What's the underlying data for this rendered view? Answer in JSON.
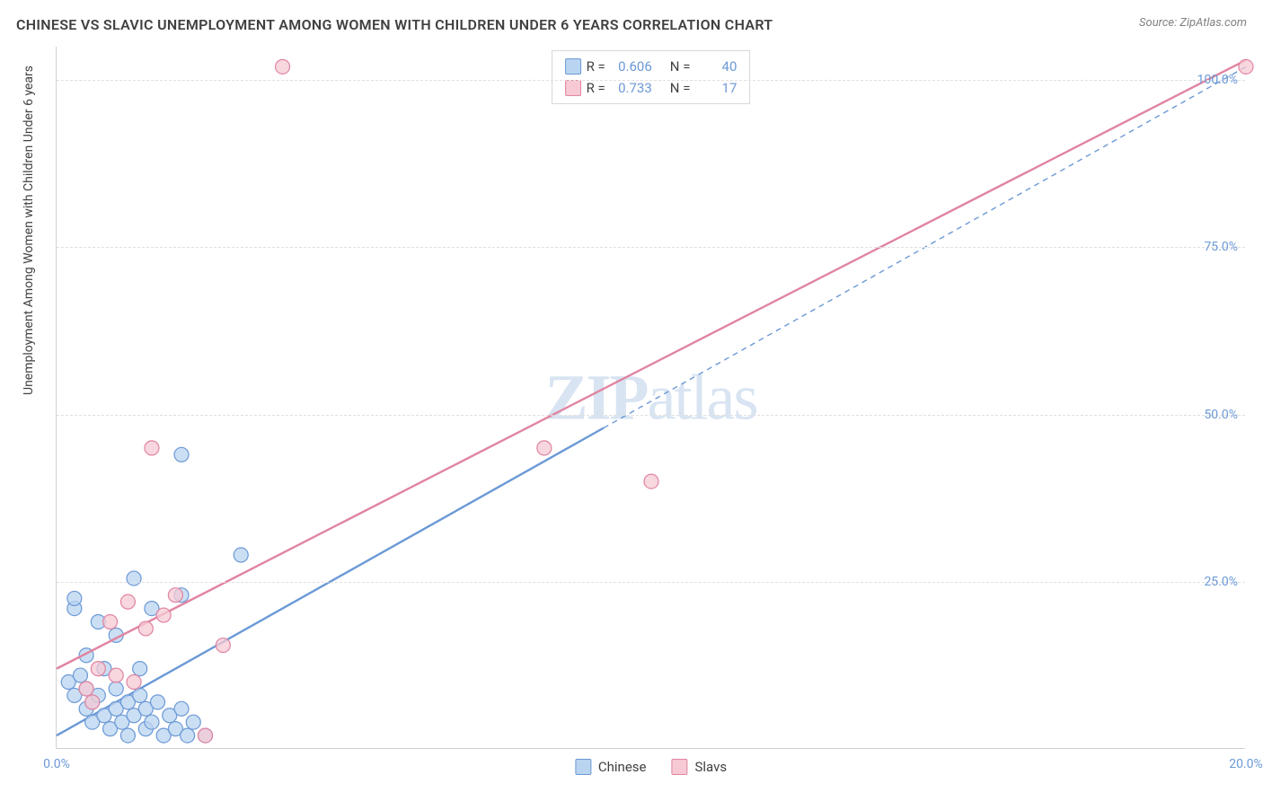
{
  "title": "CHINESE VS SLAVIC UNEMPLOYMENT AMONG WOMEN WITH CHILDREN UNDER 6 YEARS CORRELATION CHART",
  "source": "Source: ZipAtlas.com",
  "y_axis_label": "Unemployment Among Women with Children Under 6 years",
  "watermark_1": "ZIP",
  "watermark_2": "atlas",
  "chart": {
    "type": "scatter",
    "xlim": [
      0,
      20
    ],
    "ylim": [
      0,
      105
    ],
    "x_ticks": [
      {
        "v": 0,
        "label": "0.0%"
      },
      {
        "v": 20,
        "label": "20.0%"
      }
    ],
    "y_ticks": [
      {
        "v": 25,
        "label": "25.0%"
      },
      {
        "v": 50,
        "label": "50.0%"
      },
      {
        "v": 75,
        "label": "75.0%"
      },
      {
        "v": 100,
        "label": "100.0%"
      }
    ],
    "grid_color": "#e0e0e0",
    "background": "#ffffff",
    "series": [
      {
        "key": "chinese",
        "label": "Chinese",
        "color_fill": "#b9d4f0",
        "color_stroke": "#6b99d6",
        "r_value": "0.606",
        "n_value": "40",
        "marker_radius": 8,
        "trend": {
          "x1": 0,
          "y1": 2,
          "x2": 9.2,
          "y2": 48,
          "stroke_width": 2.4
        },
        "trend_ext": {
          "x1": 9.2,
          "y1": 48,
          "x2": 20,
          "y2": 102,
          "dash": "6,5",
          "stroke_width": 1.4
        },
        "points": [
          [
            0.2,
            10
          ],
          [
            0.3,
            8
          ],
          [
            0.4,
            11
          ],
          [
            0.5,
            6
          ],
          [
            0.5,
            9
          ],
          [
            0.6,
            7
          ],
          [
            0.6,
            4
          ],
          [
            0.7,
            8
          ],
          [
            0.8,
            5
          ],
          [
            0.8,
            12
          ],
          [
            0.9,
            3
          ],
          [
            1.0,
            6
          ],
          [
            1.0,
            9
          ],
          [
            1.1,
            4
          ],
          [
            1.2,
            7
          ],
          [
            1.2,
            2
          ],
          [
            1.3,
            5
          ],
          [
            1.4,
            8
          ],
          [
            1.5,
            3
          ],
          [
            1.5,
            6
          ],
          [
            1.6,
            4
          ],
          [
            1.7,
            7
          ],
          [
            1.8,
            2
          ],
          [
            1.9,
            5
          ],
          [
            2.0,
            3
          ],
          [
            2.1,
            6
          ],
          [
            2.2,
            2
          ],
          [
            2.3,
            4
          ],
          [
            2.5,
            2
          ],
          [
            0.3,
            21
          ],
          [
            0.3,
            22.5
          ],
          [
            1.3,
            25.5
          ],
          [
            2.1,
            23
          ],
          [
            1.6,
            21
          ],
          [
            2.1,
            44
          ],
          [
            3.1,
            29
          ],
          [
            0.7,
            19
          ],
          [
            1.0,
            17
          ],
          [
            1.4,
            12
          ],
          [
            0.5,
            14
          ]
        ]
      },
      {
        "key": "slavs",
        "label": "Slavs",
        "color_fill": "#f6c9d4",
        "color_stroke": "#e084a0",
        "r_value": "0.733",
        "n_value": "17",
        "marker_radius": 8,
        "trend": {
          "x1": 0,
          "y1": 12,
          "x2": 20,
          "y2": 103,
          "stroke_width": 2.4
        },
        "points": [
          [
            0.5,
            9
          ],
          [
            0.7,
            12
          ],
          [
            0.9,
            19
          ],
          [
            1.0,
            11
          ],
          [
            1.2,
            22
          ],
          [
            1.3,
            10
          ],
          [
            1.5,
            18
          ],
          [
            1.8,
            20
          ],
          [
            2.0,
            23
          ],
          [
            2.5,
            2
          ],
          [
            2.8,
            15.5
          ],
          [
            1.6,
            45
          ],
          [
            3.8,
            102
          ],
          [
            10.0,
            40
          ],
          [
            20.0,
            102
          ],
          [
            8.2,
            45
          ],
          [
            0.6,
            7
          ]
        ]
      }
    ]
  },
  "legend_top": {
    "r_label": "R =",
    "n_label": "N ="
  }
}
